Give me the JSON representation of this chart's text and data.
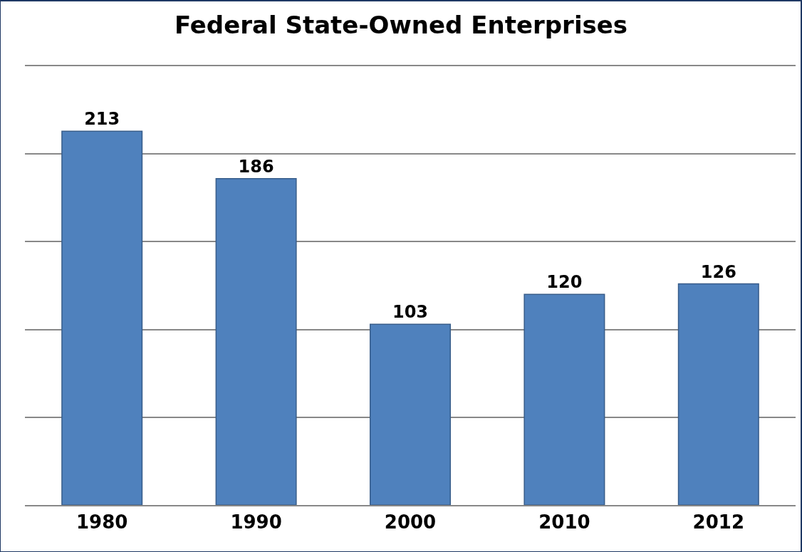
{
  "chart_data": {
    "type": "bar",
    "title": "Federal State-Owned Enterprises",
    "categories": [
      "1980",
      "1990",
      "2000",
      "2010",
      "2012"
    ],
    "values": [
      213,
      186,
      103,
      120,
      126
    ],
    "color": "#4f81bd",
    "ylim": [
      0,
      250
    ],
    "yticks": [
      {
        "value": 0,
        "label": null
      },
      {
        "value": 50,
        "label": null
      },
      {
        "value": 100,
        "label": null
      },
      {
        "value": 150,
        "label": null
      },
      {
        "value": 200,
        "label": null
      },
      {
        "value": 250,
        "label": null
      }
    ],
    "tick_labels": "x",
    "grid": "y",
    "data_labels": true
  }
}
